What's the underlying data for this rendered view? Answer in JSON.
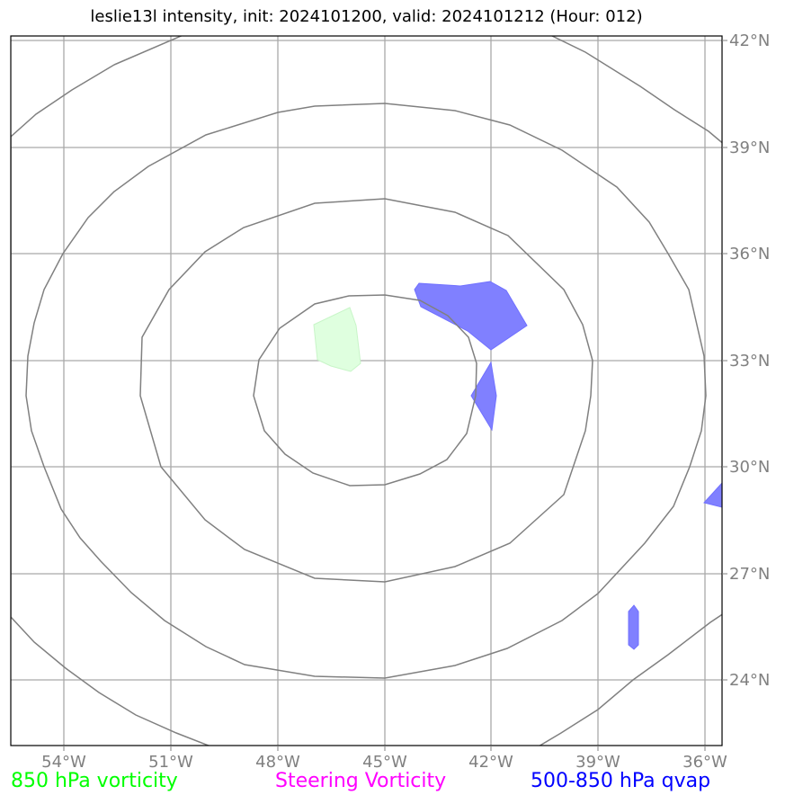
{
  "title": "leslie13l intensity, init: 2024101200, valid: 2024101212 (Hour: 012)",
  "x_ticks": [
    "54°W",
    "51°W",
    "48°W",
    "45°W",
    "42°W",
    "39°W",
    "36°W"
  ],
  "y_ticks": [
    "42°N",
    "39°N",
    "36°N",
    "33°N",
    "30°N",
    "27°N",
    "24°N"
  ],
  "legend": {
    "vorticity_850": "850 hPa vorticity",
    "steering_vorticity": "Steering Vorticity",
    "qvap_500_850": "500-850 hPa qvap"
  },
  "colors": {
    "vorticity_850": "#00ff00",
    "steering_vorticity": "#ff00ff",
    "qvap_500_850": "#0000ff",
    "vorticity_fill": "#dfffdf",
    "qvap_fill": "#8080ff",
    "grid": "#a9a9a9",
    "range_rings": "#808080"
  },
  "map": {
    "lon_range": [
      -55.5,
      -35.5
    ],
    "lat_range": [
      22.2,
      42.2
    ],
    "grid_lons": [
      -54,
      -51,
      -48,
      -45,
      -42,
      -39,
      -36
    ],
    "grid_lats": [
      42,
      39,
      36,
      33,
      30,
      27,
      24
    ],
    "range_ring_count": 4
  }
}
